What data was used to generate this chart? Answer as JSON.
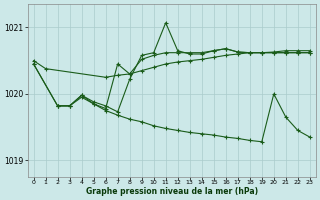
{
  "bg_color": "#cce8e8",
  "grid_color": "#aacccc",
  "line_color": "#1a5c1a",
  "xlabel": "Graphe pression niveau de la mer (hPa)",
  "ylim": [
    1018.75,
    1021.35
  ],
  "yticks": [
    1019,
    1020,
    1021
  ],
  "xlim": [
    -0.5,
    23.5
  ],
  "xticks": [
    0,
    1,
    2,
    3,
    4,
    5,
    6,
    7,
    8,
    9,
    10,
    11,
    12,
    13,
    14,
    15,
    16,
    17,
    18,
    19,
    20,
    21,
    22,
    23
  ],
  "lines": [
    {
      "x": [
        0,
        1,
        6,
        7,
        8,
        9,
        10,
        11,
        12,
        13,
        14,
        15,
        16,
        17,
        18,
        19,
        20,
        21,
        22,
        23
      ],
      "y": [
        1020.5,
        1020.38,
        1020.25,
        1020.28,
        1020.3,
        1020.35,
        1020.4,
        1020.45,
        1020.48,
        1020.5,
        1020.52,
        1020.55,
        1020.58,
        1020.6,
        1020.62,
        1020.62,
        1020.63,
        1020.65,
        1020.65,
        1020.65
      ]
    },
    {
      "x": [
        2,
        3,
        4,
        5,
        6,
        7,
        8,
        9,
        10,
        11,
        12,
        13,
        14,
        15,
        16,
        17,
        18,
        19,
        20,
        21,
        22,
        23
      ],
      "y": [
        1019.82,
        1019.82,
        1019.98,
        1019.88,
        1019.82,
        1019.73,
        1020.22,
        1020.58,
        1020.62,
        1021.07,
        1020.65,
        1020.6,
        1020.6,
        1020.65,
        1020.68,
        1020.63,
        1020.62,
        1020.62,
        1020.62,
        1020.62,
        1020.62,
        1020.62
      ]
    },
    {
      "x": [
        0,
        2,
        3,
        4,
        5,
        6,
        7,
        8,
        9,
        10,
        11,
        12,
        13,
        14,
        15,
        16,
        17,
        18,
        19,
        20,
        21,
        22,
        23
      ],
      "y": [
        1020.45,
        1019.82,
        1019.82,
        1019.98,
        1019.85,
        1019.78,
        1020.45,
        1020.3,
        1020.52,
        1020.58,
        1020.62,
        1020.62,
        1020.62,
        1020.62,
        1020.65,
        1020.68,
        1020.63,
        1020.62,
        1020.62,
        1020.62,
        1020.62,
        1020.62,
        1020.62
      ]
    },
    {
      "x": [
        0,
        2,
        3,
        4,
        5,
        6,
        7,
        8,
        9,
        10,
        11,
        12,
        13,
        14,
        15,
        16,
        17,
        18,
        19,
        20,
        21,
        22,
        23
      ],
      "y": [
        1020.45,
        1019.82,
        1019.82,
        1019.95,
        1019.85,
        1019.75,
        1019.68,
        1019.62,
        1019.58,
        1019.52,
        1019.48,
        1019.45,
        1019.42,
        1019.4,
        1019.38,
        1019.35,
        1019.33,
        1019.3,
        1019.28,
        1020.0,
        1019.65,
        1019.45,
        1019.35
      ]
    }
  ]
}
